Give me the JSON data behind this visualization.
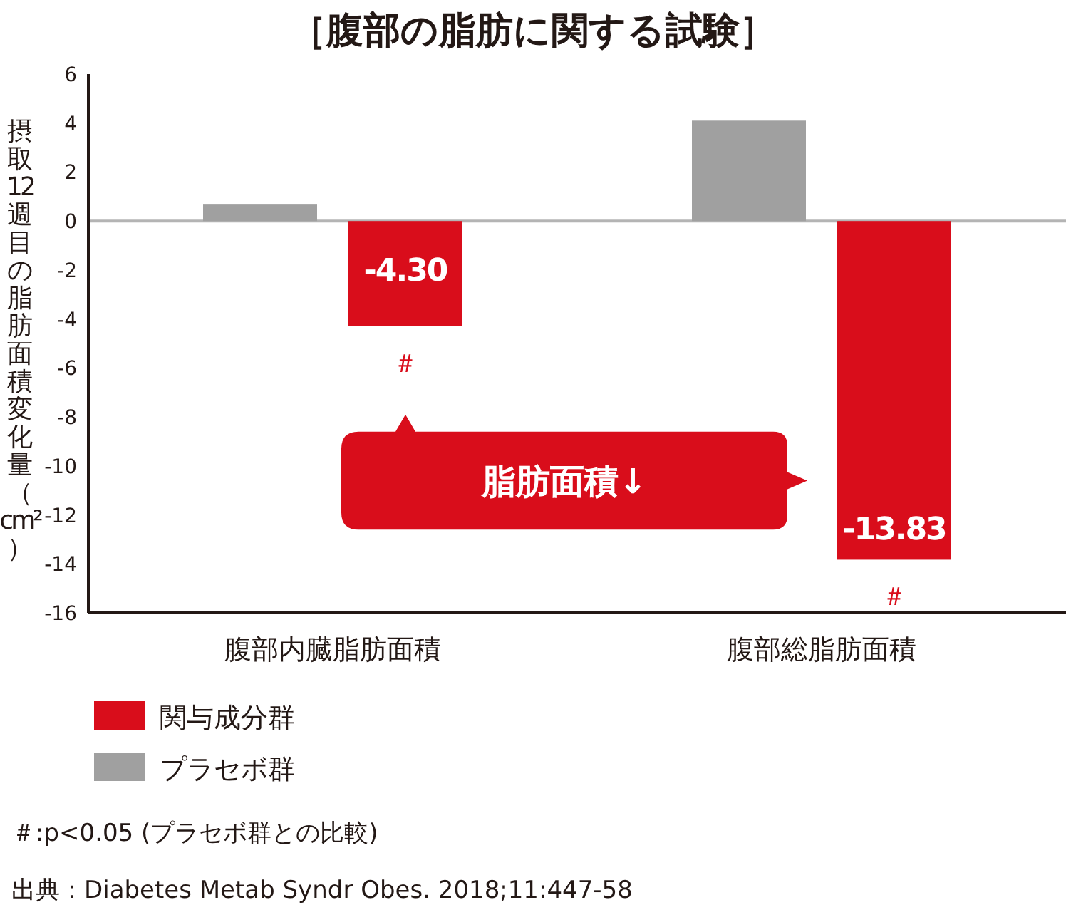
{
  "chart_data": {
    "type": "bar",
    "title": "［腹部の脂肪に関する試験］",
    "ylabel": "摂取12週目の脂肪面積変化量（cm²）",
    "categories": [
      "腹部内臓脂肪面積",
      "腹部総脂肪面積"
    ],
    "series": [
      {
        "name": "プラセボ群",
        "color": "#a0a0a0",
        "values": [
          0.7,
          4.1
        ]
      },
      {
        "name": "関与成分群",
        "color": "#d90d1b",
        "values": [
          -4.3,
          -13.83
        ],
        "value_labels": [
          "-4.30",
          "-13.83"
        ]
      }
    ],
    "ylim": [
      -16,
      6
    ],
    "yticks": [
      -16,
      -14,
      -12,
      -10,
      -8,
      -6,
      -4,
      -2,
      0,
      2,
      4,
      6
    ],
    "ref_lines": [
      {
        "axis": "y",
        "value": 0,
        "color": "#b4b4b4"
      }
    ],
    "annotations": [
      "＃",
      "＃",
      "脂肪面積↓",
      "＃:p<0.05 (プラセボ群との比較)",
      "出典：Diabetes Metab Syndr Obes. 2018;11:447-58"
    ],
    "legend": "bottom"
  }
}
